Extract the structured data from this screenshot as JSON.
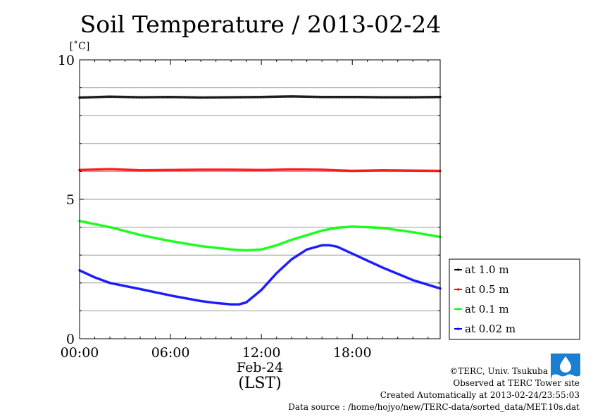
{
  "title": "Soil Temperature / 2013-02-24",
  "colors": {
    "grid": "#999999",
    "axis": "#000000"
  },
  "chart_data": {
    "type": "line",
    "title": "Soil Temperature / 2013-02-24",
    "ylabel": "[˚C]",
    "xlabel": "(LST)",
    "date_label": "Feb-24",
    "xlim": [
      0,
      23.8
    ],
    "ylim": [
      0,
      10
    ],
    "x_ticks": [
      {
        "value": 0,
        "label": "00:00"
      },
      {
        "value": 6,
        "label": "06:00"
      },
      {
        "value": 12,
        "label": "12:00"
      },
      {
        "value": 18,
        "label": "18:00"
      }
    ],
    "y_ticks": [
      {
        "value": 0,
        "label": "0"
      },
      {
        "value": 5,
        "label": "5"
      },
      {
        "value": 10,
        "label": "10"
      }
    ],
    "grid": true,
    "legend_position": "bottom-right, outside plot",
    "series": [
      {
        "name": "at 1.0 m",
        "color": "#000000",
        "x": [
          0,
          2,
          4,
          6,
          8,
          10,
          12,
          14,
          16,
          18,
          20,
          22,
          23.8
        ],
        "values": [
          8.65,
          8.68,
          8.66,
          8.67,
          8.65,
          8.66,
          8.67,
          8.69,
          8.67,
          8.67,
          8.66,
          8.66,
          8.67
        ]
      },
      {
        "name": "at 0.5 m",
        "color": "#ff0000",
        "x": [
          0,
          2,
          4,
          6,
          8,
          10,
          12,
          14,
          16,
          18,
          20,
          22,
          23.8
        ],
        "values": [
          6.05,
          6.08,
          6.04,
          6.05,
          6.06,
          6.06,
          6.05,
          6.07,
          6.06,
          6.02,
          6.04,
          6.03,
          6.02
        ]
      },
      {
        "name": "at 0.1 m",
        "color": "#00ff00",
        "x": [
          0,
          2,
          4,
          6,
          8,
          10,
          11,
          12,
          13,
          14,
          16,
          17,
          18,
          19,
          20,
          22,
          23.8
        ],
        "values": [
          4.22,
          4.0,
          3.72,
          3.5,
          3.32,
          3.2,
          3.17,
          3.2,
          3.35,
          3.55,
          3.88,
          3.98,
          4.02,
          4.0,
          3.97,
          3.82,
          3.65
        ]
      },
      {
        "name": "at 0.02 m",
        "color": "#0000ff",
        "x": [
          0,
          1,
          2,
          4,
          6,
          8,
          9,
          10,
          10.5,
          11,
          12,
          13,
          14,
          15,
          16,
          16.5,
          17,
          18,
          20,
          22,
          23.8
        ],
        "values": [
          2.45,
          2.2,
          2.0,
          1.78,
          1.55,
          1.35,
          1.28,
          1.23,
          1.23,
          1.3,
          1.75,
          2.35,
          2.85,
          3.2,
          3.35,
          3.35,
          3.3,
          3.05,
          2.55,
          2.1,
          1.8
        ]
      }
    ]
  },
  "footer": {
    "copyright": "©TERC, Univ. Tsukuba",
    "site": "Observed at TERC Tower site",
    "created": "Created Automatically at 2013-02-24/23:55:03",
    "source": "Data source : /home/hojyo/new/TERC-data/sorted_data/MET.10s.dat"
  }
}
